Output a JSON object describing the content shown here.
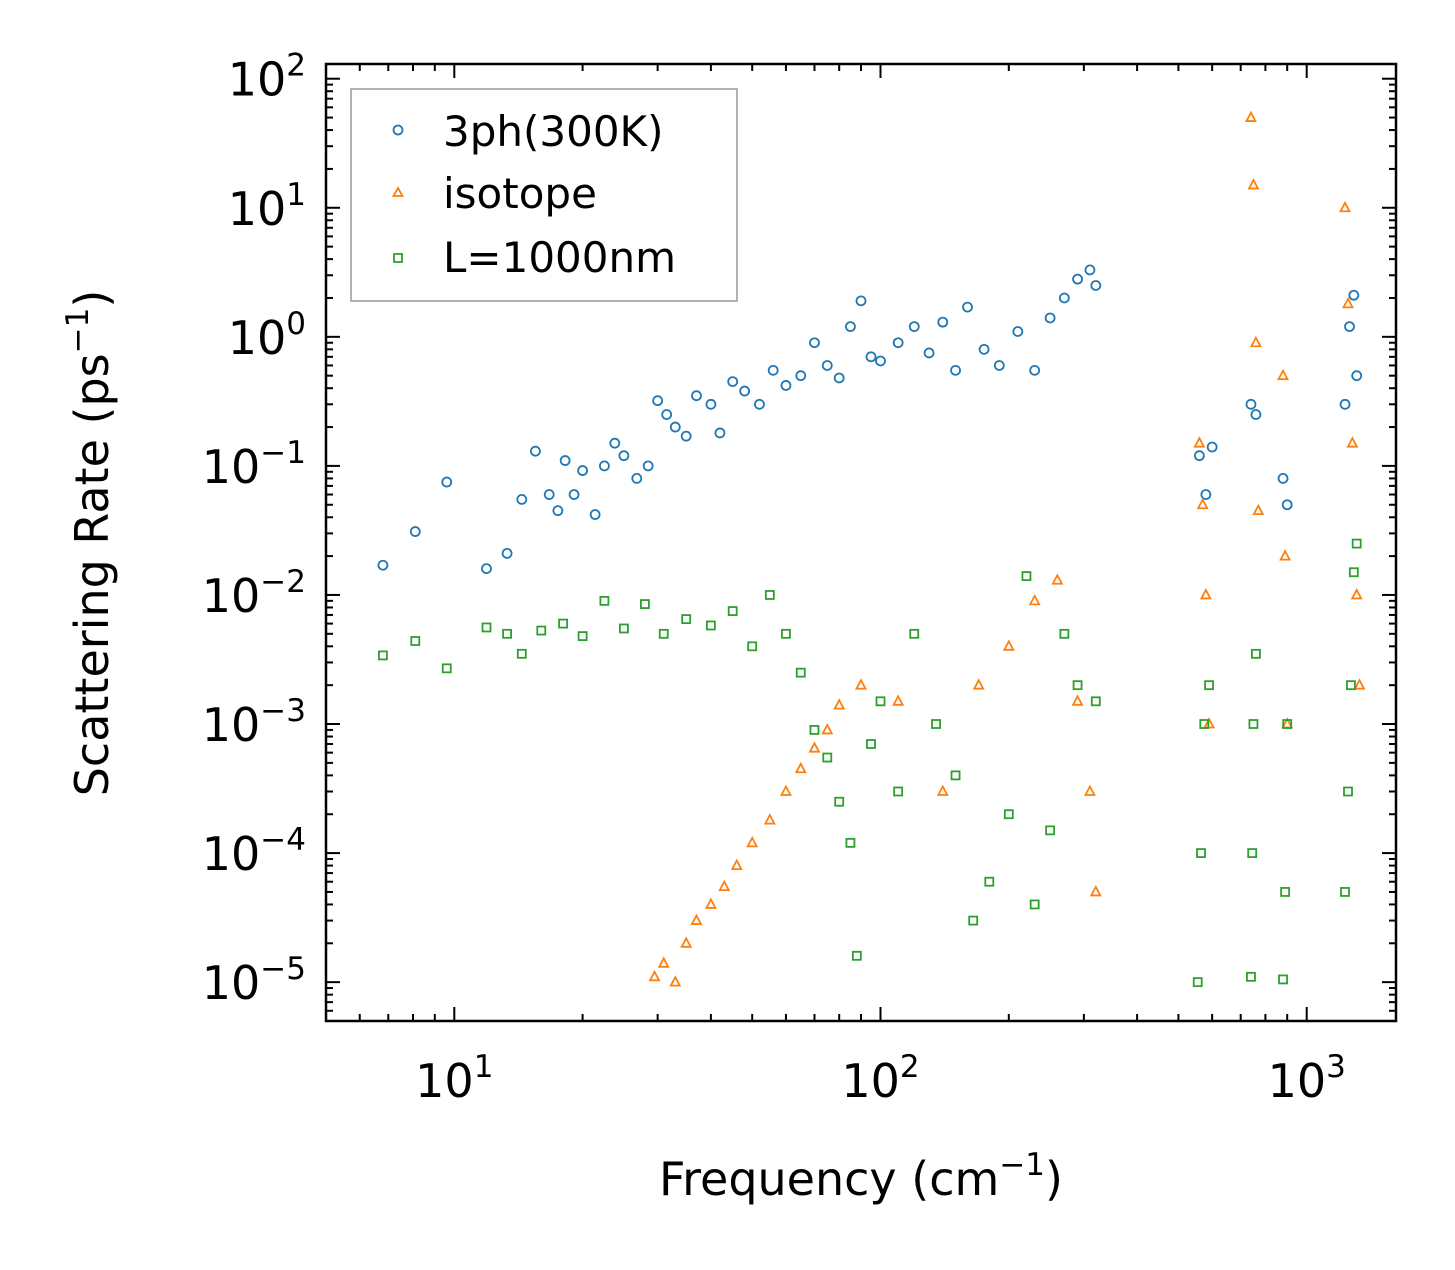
{
  "chart_data": {
    "type": "scatter",
    "title": "",
    "xlabel": "Frequency (cm",
    "xlabel_sup": "−1",
    "xlabel_end": ")",
    "ylabel": "Scattering Rate (ps",
    "ylabel_sup": "−1",
    "ylabel_end": ")",
    "xscale": "log",
    "yscale": "log",
    "xlim": [
      5.0,
      1620
    ],
    "ylim": [
      5e-06,
      130
    ],
    "x_ticks": [
      {
        "value": 10,
        "base": "10",
        "exp": "1"
      },
      {
        "value": 100,
        "base": "10",
        "exp": "2"
      },
      {
        "value": 1000,
        "base": "10",
        "exp": "3"
      }
    ],
    "y_ticks": [
      {
        "value": 1e-05,
        "base": "10",
        "exp": "−5"
      },
      {
        "value": 0.0001,
        "base": "10",
        "exp": "−4"
      },
      {
        "value": 0.001,
        "base": "10",
        "exp": "−3"
      },
      {
        "value": 0.01,
        "base": "10",
        "exp": "−2"
      },
      {
        "value": 0.1,
        "base": "10",
        "exp": "−1"
      },
      {
        "value": 1,
        "base": "10",
        "exp": "0"
      },
      {
        "value": 10,
        "base": "10",
        "exp": "1"
      },
      {
        "value": 100,
        "base": "10",
        "exp": "2"
      }
    ],
    "legend": {
      "position": "top-left",
      "entries": [
        "3ph(300K)",
        "isotope",
        "L=1000nm"
      ]
    },
    "series": [
      {
        "name": "3ph(300K)",
        "marker": "circle",
        "color": "#1f77b4",
        "points": [
          [
            6.8,
            0.017
          ],
          [
            8.1,
            0.031
          ],
          [
            9.6,
            0.075
          ],
          [
            11.9,
            0.016
          ],
          [
            13.3,
            0.021
          ],
          [
            14.4,
            0.055
          ],
          [
            15.5,
            0.13
          ],
          [
            16.7,
            0.06
          ],
          [
            17.5,
            0.045
          ],
          [
            18.2,
            0.11
          ],
          [
            19.1,
            0.06
          ],
          [
            20.0,
            0.092
          ],
          [
            21.4,
            0.042
          ],
          [
            22.5,
            0.1
          ],
          [
            23.8,
            0.15
          ],
          [
            25.0,
            0.12
          ],
          [
            26.8,
            0.08
          ],
          [
            28.5,
            0.1
          ],
          [
            30.0,
            0.32
          ],
          [
            31.5,
            0.25
          ],
          [
            33.0,
            0.2
          ],
          [
            35.0,
            0.17
          ],
          [
            37.0,
            0.35
          ],
          [
            40.0,
            0.3
          ],
          [
            42.0,
            0.18
          ],
          [
            45.0,
            0.45
          ],
          [
            48.0,
            0.38
          ],
          [
            52.0,
            0.3
          ],
          [
            56.0,
            0.55
          ],
          [
            60.0,
            0.42
          ],
          [
            65.0,
            0.5
          ],
          [
            70.0,
            0.9
          ],
          [
            75.0,
            0.6
          ],
          [
            80.0,
            0.48
          ],
          [
            85.0,
            1.2
          ],
          [
            90.0,
            1.9
          ],
          [
            95.0,
            0.7
          ],
          [
            100.0,
            0.65
          ],
          [
            110.0,
            0.9
          ],
          [
            120.0,
            1.2
          ],
          [
            130.0,
            0.75
          ],
          [
            140.0,
            1.3
          ],
          [
            150.0,
            0.55
          ],
          [
            160.0,
            1.7
          ],
          [
            175.0,
            0.8
          ],
          [
            190.0,
            0.6
          ],
          [
            210.0,
            1.1
          ],
          [
            230.0,
            0.55
          ],
          [
            250.0,
            1.4
          ],
          [
            270.0,
            2.0
          ],
          [
            290.0,
            2.8
          ],
          [
            310.0,
            3.3
          ],
          [
            320.0,
            2.5
          ],
          [
            560.0,
            0.12
          ],
          [
            580.0,
            0.06
          ],
          [
            600.0,
            0.14
          ],
          [
            740.0,
            0.3
          ],
          [
            760.0,
            0.25
          ],
          [
            880.0,
            0.08
          ],
          [
            900.0,
            0.05
          ],
          [
            1230.0,
            0.3
          ],
          [
            1260.0,
            1.2
          ],
          [
            1290.0,
            2.1
          ],
          [
            1310.0,
            0.5
          ]
        ]
      },
      {
        "name": "isotope",
        "marker": "triangle",
        "color": "#ff7f0e",
        "points": [
          [
            29.5,
            1.1e-05
          ],
          [
            31.0,
            1.4e-05
          ],
          [
            33.0,
            1e-05
          ],
          [
            35.0,
            2e-05
          ],
          [
            37.0,
            3e-05
          ],
          [
            40.0,
            4e-05
          ],
          [
            43.0,
            5.5e-05
          ],
          [
            46.0,
            8e-05
          ],
          [
            50.0,
            0.00012
          ],
          [
            55.0,
            0.00018
          ],
          [
            60.0,
            0.0003
          ],
          [
            65.0,
            0.00045
          ],
          [
            70.0,
            0.00065
          ],
          [
            75.0,
            0.0009
          ],
          [
            80.0,
            0.0014
          ],
          [
            90.0,
            0.002
          ],
          [
            110.0,
            0.0015
          ],
          [
            140.0,
            0.0003
          ],
          [
            170.0,
            0.002
          ],
          [
            200.0,
            0.004
          ],
          [
            230.0,
            0.009
          ],
          [
            260.0,
            0.013
          ],
          [
            290.0,
            0.0015
          ],
          [
            310.0,
            0.0003
          ],
          [
            320.0,
            5e-05
          ],
          [
            560.0,
            0.15
          ],
          [
            570.0,
            0.05
          ],
          [
            580.0,
            0.01
          ],
          [
            590.0,
            0.001
          ],
          [
            740.0,
            50.0
          ],
          [
            750.0,
            15.0
          ],
          [
            760.0,
            0.9
          ],
          [
            770.0,
            0.045
          ],
          [
            880.0,
            0.5
          ],
          [
            890.0,
            0.02
          ],
          [
            900.0,
            0.001
          ],
          [
            1230.0,
            10.0
          ],
          [
            1250.0,
            1.8
          ],
          [
            1280.0,
            0.15
          ],
          [
            1310.0,
            0.01
          ],
          [
            1330.0,
            0.002
          ]
        ]
      },
      {
        "name": "L=1000nm",
        "marker": "square",
        "color": "#2ca02c",
        "points": [
          [
            6.8,
            0.0034
          ],
          [
            8.1,
            0.0044
          ],
          [
            9.6,
            0.0027
          ],
          [
            11.9,
            0.0056
          ],
          [
            13.3,
            0.005
          ],
          [
            14.4,
            0.0035
          ],
          [
            16.0,
            0.0053
          ],
          [
            18.0,
            0.006
          ],
          [
            20.0,
            0.0048
          ],
          [
            22.5,
            0.009
          ],
          [
            25.0,
            0.0055
          ],
          [
            28.0,
            0.0085
          ],
          [
            31.0,
            0.005
          ],
          [
            35.0,
            0.0065
          ],
          [
            40.0,
            0.0058
          ],
          [
            45.0,
            0.0075
          ],
          [
            50.0,
            0.004
          ],
          [
            55.0,
            0.01
          ],
          [
            60.0,
            0.005
          ],
          [
            65.0,
            0.0025
          ],
          [
            70.0,
            0.0009
          ],
          [
            75.0,
            0.00055
          ],
          [
            80.0,
            0.00025
          ],
          [
            85.0,
            0.00012
          ],
          [
            88.0,
            1.6e-05
          ],
          [
            95.0,
            0.0007
          ],
          [
            100.0,
            0.0015
          ],
          [
            110.0,
            0.0003
          ],
          [
            120.0,
            0.005
          ],
          [
            135.0,
            0.001
          ],
          [
            150.0,
            0.0004
          ],
          [
            165.0,
            3e-05
          ],
          [
            180.0,
            6e-05
          ],
          [
            200.0,
            0.0002
          ],
          [
            220.0,
            0.014
          ],
          [
            230.0,
            4e-05
          ],
          [
            250.0,
            0.00015
          ],
          [
            270.0,
            0.005
          ],
          [
            290.0,
            0.002
          ],
          [
            320.0,
            0.0015
          ],
          [
            555.0,
            1e-05
          ],
          [
            565.0,
            0.0001
          ],
          [
            575.0,
            0.001
          ],
          [
            590.0,
            0.002
          ],
          [
            740.0,
            1.1e-05
          ],
          [
            745.0,
            0.0001
          ],
          [
            750.0,
            0.001
          ],
          [
            760.0,
            0.0035
          ],
          [
            880.0,
            1.05e-05
          ],
          [
            890.0,
            5e-05
          ],
          [
            900.0,
            0.001
          ],
          [
            1230.0,
            5e-05
          ],
          [
            1250.0,
            0.0003
          ],
          [
            1270.0,
            0.002
          ],
          [
            1290.0,
            0.015
          ],
          [
            1310.0,
            0.025
          ]
        ]
      }
    ]
  }
}
